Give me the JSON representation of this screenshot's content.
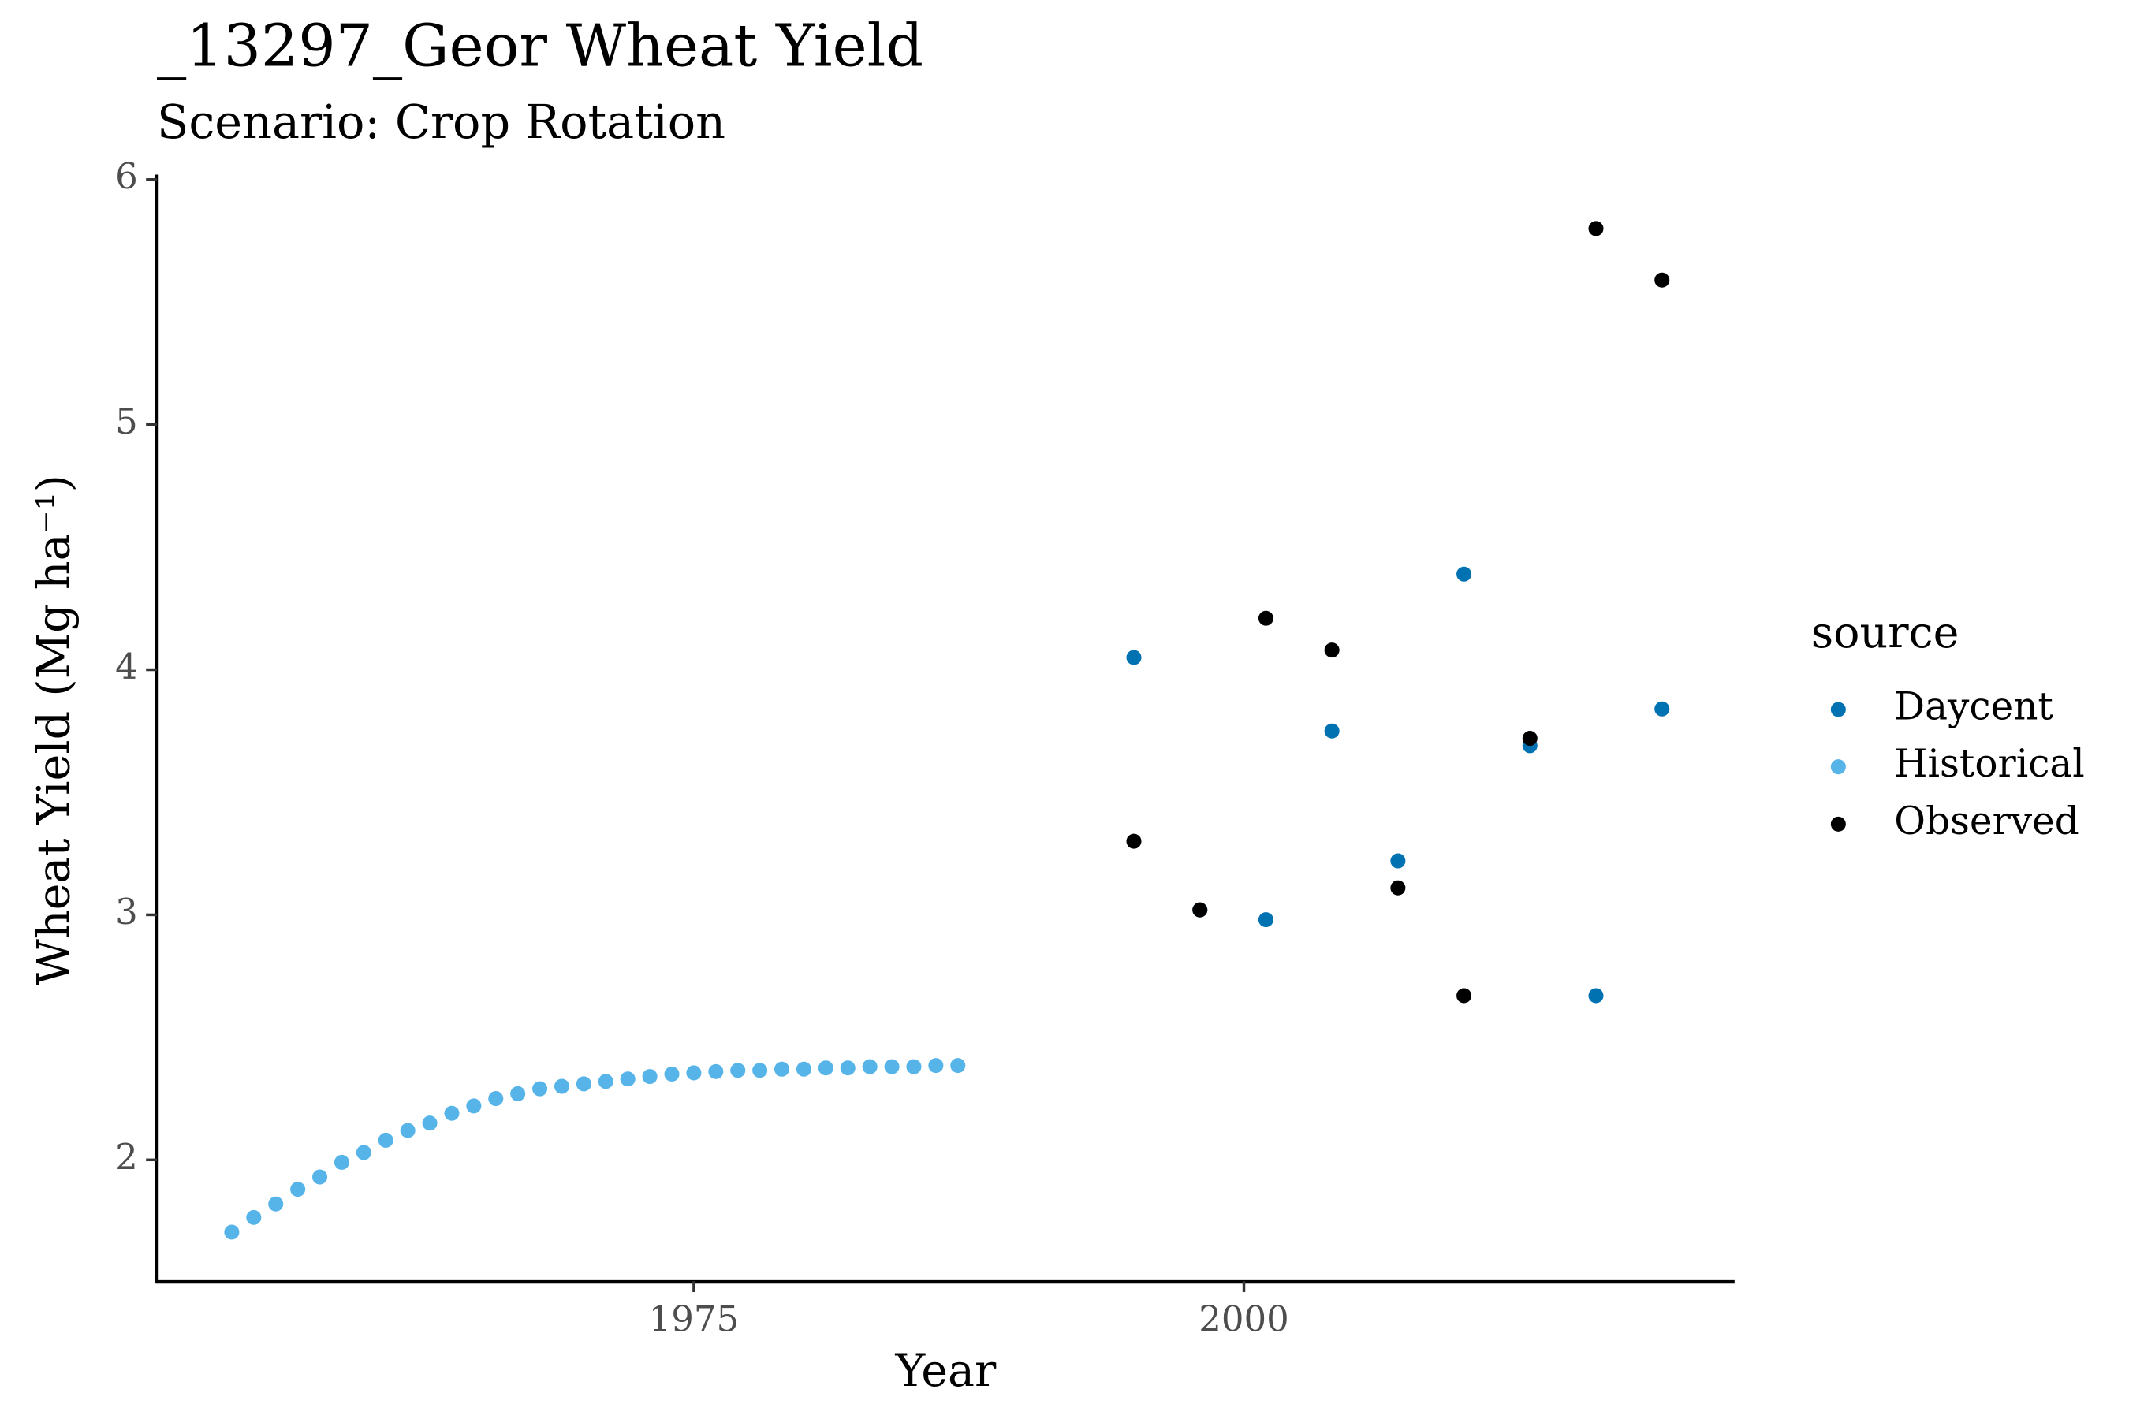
{
  "chart_data": {
    "type": "scatter",
    "title": "_13297_Geor Wheat Yield",
    "subtitle": "Scenario: Crop Rotation",
    "x_label": "Year",
    "y_label": "Wheat Yield (Mg ha⁻¹)",
    "legend_title": "source",
    "legend_position": "right",
    "grid": false,
    "xlim": [
      1950.6,
      2022.3
    ],
    "ylim": [
      1.505,
      6.02
    ],
    "xticks": [
      1975,
      2000
    ],
    "yticks": [
      2,
      3,
      4,
      5,
      6
    ],
    "series": [
      {
        "name": "Daycent",
        "color": "#0072B2",
        "x": [
          1995,
          1998,
          2001,
          2004,
          2007,
          2010,
          2013,
          2016,
          2019
        ],
        "values": [
          4.05,
          3.02,
          2.98,
          3.75,
          3.22,
          4.39,
          3.69,
          2.67,
          3.84
        ]
      },
      {
        "name": "Historical",
        "color": "#56B4E9",
        "x": [
          1954,
          1955,
          1956,
          1957,
          1958,
          1959,
          1960,
          1961,
          1962,
          1963,
          1964,
          1965,
          1966,
          1967,
          1968,
          1969,
          1970,
          1971,
          1972,
          1973,
          1974,
          1975,
          1976,
          1977,
          1978,
          1979,
          1980,
          1981,
          1982,
          1983,
          1984,
          1985,
          1986,
          1987
        ],
        "values": [
          1.705,
          1.765,
          1.82,
          1.88,
          1.93,
          1.99,
          2.03,
          2.08,
          2.12,
          2.15,
          2.19,
          2.22,
          2.25,
          2.27,
          2.29,
          2.3,
          2.31,
          2.32,
          2.33,
          2.34,
          2.35,
          2.355,
          2.36,
          2.365,
          2.365,
          2.37,
          2.37,
          2.375,
          2.375,
          2.38,
          2.38,
          2.38,
          2.385,
          2.385
        ]
      },
      {
        "name": "Observed",
        "color": "#000000",
        "x": [
          1995,
          1998,
          2001,
          2004,
          2007,
          2010,
          2013,
          2016,
          2019
        ],
        "values": [
          3.3,
          3.02,
          4.21,
          4.08,
          3.11,
          2.67,
          3.72,
          5.8,
          5.59
        ]
      }
    ]
  }
}
